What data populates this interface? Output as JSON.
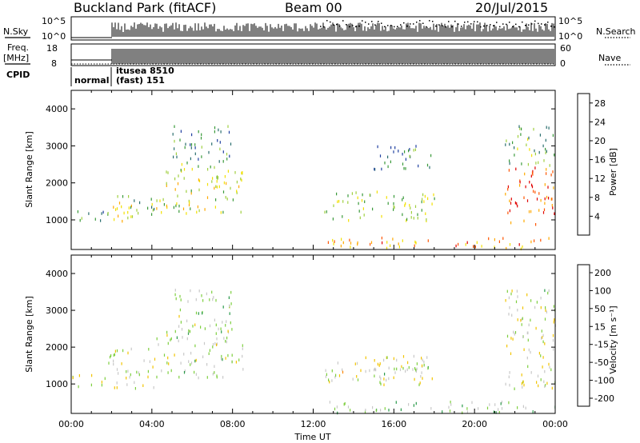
{
  "header": {
    "site": "Buckland Park (fitACF)",
    "beam": "Beam 00",
    "date": "20/Jul/2015"
  },
  "top_panels": {
    "nsky_label": "N.Sky",
    "nsky_ticks": [
      "10^5",
      "10^0"
    ],
    "nsearch_label": "N.Search",
    "nsearch_ticks": [
      "10^5",
      "10^0"
    ],
    "freq_label_1": "Freq.",
    "freq_label_2": "[MHz]",
    "freq_ticks": [
      "18",
      "8"
    ],
    "nave_label": "Nave",
    "nave_ticks": [
      "60",
      "0"
    ],
    "cpid_label": "CPID",
    "cpid_mode_1": "normal",
    "cpid_mode_2_line1": "itusea 8510",
    "cpid_mode_2_line2": "(fast) 151"
  },
  "chart_data": [
    {
      "type": "heatmap",
      "title": "",
      "quantity": "Power",
      "colorbar_label": "Power [dB]",
      "colorbar_ticks": [
        "4",
        "8",
        "12",
        "16",
        "20",
        "24",
        "28"
      ],
      "colorbar_range": [
        0,
        30
      ],
      "colorbar_colors": [
        "#0000ff",
        "#1f3fa0",
        "#2a6e6e",
        "#3a9a3a",
        "#9fcf3f",
        "#f2e000",
        "#ffaa00",
        "#ff5500",
        "#e00000"
      ],
      "ylabel": "Slant Range [km]",
      "yticks": [
        "1000",
        "2000",
        "3000",
        "4000"
      ],
      "ylim": [
        200,
        4500
      ],
      "xlabel": "Time UT",
      "xticks": [
        "00:00",
        "04:00",
        "08:00",
        "12:00",
        "16:00",
        "20:00",
        "00:00"
      ],
      "xlim_hours": [
        0,
        24
      ],
      "regions": [
        {
          "t": [
            0.0,
            1.8
          ],
          "r": [
            950,
            1300
          ],
          "level": 9
        },
        {
          "t": [
            1.8,
            3.0
          ],
          "r": [
            900,
            2000
          ],
          "level": 18
        },
        {
          "t": [
            3.0,
            4.2
          ],
          "r": [
            900,
            1600
          ],
          "level": 12
        },
        {
          "t": [
            4.2,
            8.5
          ],
          "r": [
            1200,
            2600
          ],
          "level": 16
        },
        {
          "t": [
            5.0,
            8.0
          ],
          "r": [
            2600,
            3600
          ],
          "level": 10
        },
        {
          "t": [
            12.5,
            18.0
          ],
          "r": [
            1000,
            1800
          ],
          "level": 14
        },
        {
          "t": [
            15.0,
            18.0
          ],
          "r": [
            2400,
            3100
          ],
          "level": 10
        },
        {
          "t": [
            12.5,
            24.0
          ],
          "r": [
            250,
            550
          ],
          "level": 22
        },
        {
          "t": [
            21.5,
            24.0
          ],
          "r": [
            900,
            2500
          ],
          "level": 26
        },
        {
          "t": [
            21.5,
            24.0
          ],
          "r": [
            2500,
            3600
          ],
          "level": 12
        }
      ]
    },
    {
      "type": "heatmap",
      "title": "",
      "quantity": "Velocity",
      "colorbar_label": "Velocity [m s⁻¹]",
      "colorbar_ticks": [
        "200",
        "100",
        "50",
        "15",
        "-15",
        "-50",
        "-100",
        "-200"
      ],
      "colorbar_range": [
        -250,
        250
      ],
      "colorbar_colors": [
        "#1a2ad0",
        "#2a9a4a",
        "#7ecf3f",
        "#c8c8c8",
        "#f2c400",
        "#ff8800",
        "#e00000"
      ],
      "ylabel": "Slant Range [km]",
      "yticks": [
        "1000",
        "2000",
        "3000",
        "4000"
      ],
      "ylim": [
        200,
        4500
      ],
      "xlabel": "Time UT",
      "xticks": [
        "00:00",
        "04:00",
        "08:00",
        "12:00",
        "16:00",
        "20:00",
        "00:00"
      ],
      "xlim_hours": [
        0,
        24
      ],
      "regions": [
        {
          "t": [
            0.0,
            1.8
          ],
          "r": [
            950,
            1300
          ],
          "level": 0
        },
        {
          "t": [
            1.8,
            4.2
          ],
          "r": [
            900,
            2000
          ],
          "level": 0
        },
        {
          "t": [
            4.2,
            8.5
          ],
          "r": [
            1200,
            2600
          ],
          "level": -30
        },
        {
          "t": [
            5.0,
            8.0
          ],
          "r": [
            2600,
            3600
          ],
          "level": -40
        },
        {
          "t": [
            12.5,
            18.0
          ],
          "r": [
            1000,
            1800
          ],
          "level": 20
        },
        {
          "t": [
            15.0,
            18.0
          ],
          "r": [
            1200,
            1600
          ],
          "level": -40
        },
        {
          "t": [
            12.5,
            24.0
          ],
          "r": [
            250,
            550
          ],
          "level": -60
        },
        {
          "t": [
            21.5,
            24.0
          ],
          "r": [
            900,
            2500
          ],
          "level": 0
        },
        {
          "t": [
            21.5,
            24.0
          ],
          "r": [
            2500,
            3600
          ],
          "level": -20
        }
      ]
    }
  ]
}
